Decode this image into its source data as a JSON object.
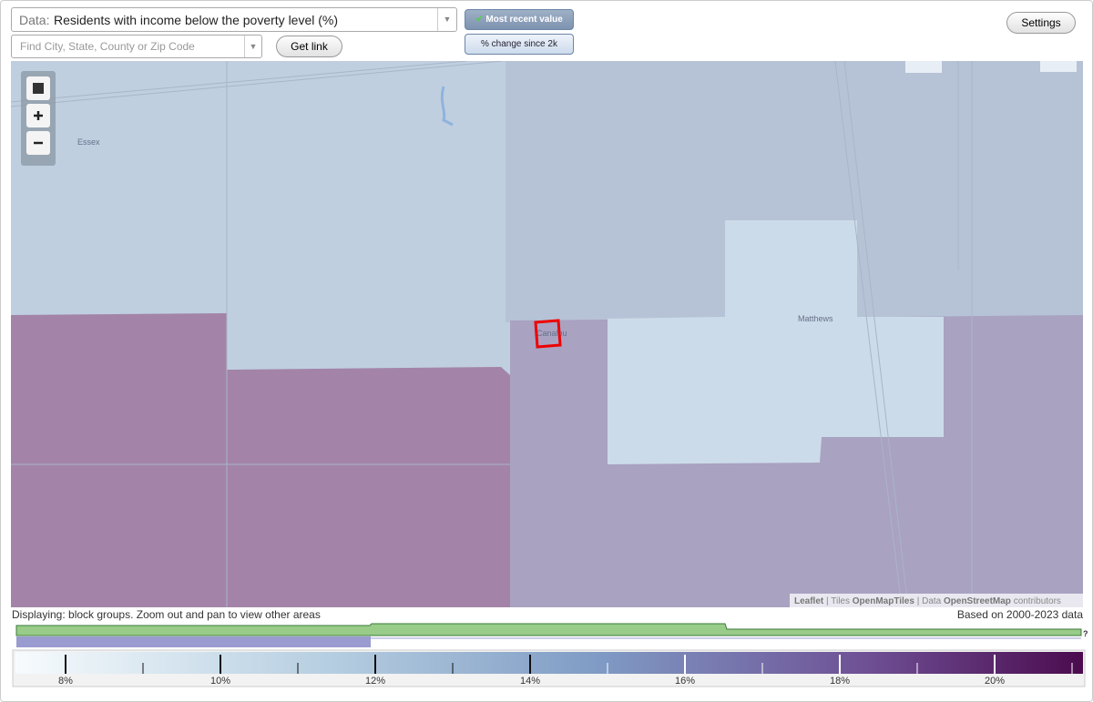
{
  "controls": {
    "data_prefix": "Data:",
    "data_select": "Residents with income below the poverty level (%)",
    "search_placeholder": "Find City, State, County or Zip Code",
    "get_link": "Get link",
    "toggle_recent": "Most recent value",
    "toggle_change": "% change since 2k",
    "settings": "Settings"
  },
  "map": {
    "place_labels": [
      "Essex",
      "Matthews",
      "Canalou"
    ],
    "attribution": {
      "leaflet": "Leaflet",
      "sep1": "|",
      "tiles": "Tiles",
      "openmaptiles": "OpenMapTiles",
      "data": "| Data",
      "osm": "OpenStreetMap",
      "contributors": "contributors"
    }
  },
  "footer": {
    "displaying": "Displaying: block groups. Zoom out and pan to view other areas",
    "based_on": "Based on 2000-2023 data",
    "help": "?"
  },
  "legend": {
    "labels": [
      "8%",
      "10%",
      "12%",
      "14%",
      "16%",
      "18%",
      "20%"
    ]
  }
}
